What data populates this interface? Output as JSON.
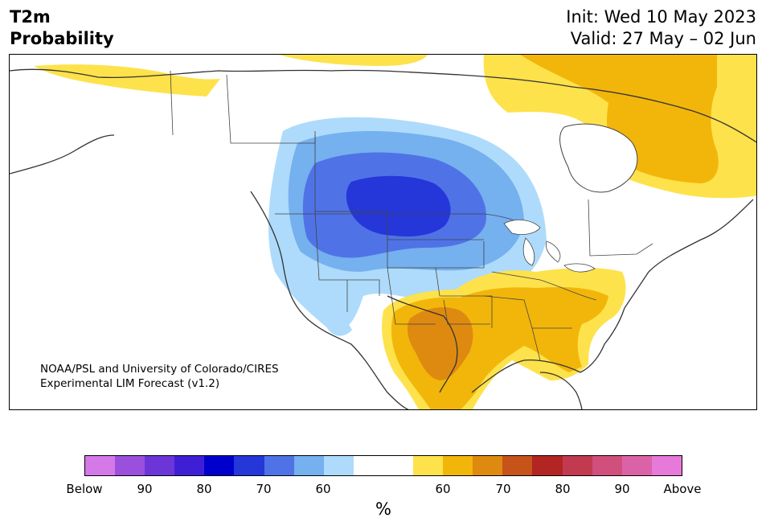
{
  "header": {
    "title_line1": "T2m",
    "title_line2": "Probability",
    "init": "Init: Wed 10 May 2023",
    "valid": "Valid: 27 May – 02 Jun"
  },
  "map": {
    "credit_line1": "NOAA/PSL and University of Colorado/CIRES",
    "credit_line2": "Experimental LIM Forecast (v1.2)",
    "below_colors": [
      "#aedbfb",
      "#75b0ef",
      "#4f73e6",
      "#2537d9"
    ],
    "above_colors": [
      "#fde24b",
      "#f2b60a",
      "#de8a10"
    ]
  },
  "colorbar": {
    "unit": "%",
    "colors": [
      "#d579e8",
      "#9a50dd",
      "#6c35d8",
      "#3f1fd6",
      "#0000cd",
      "#2537d9",
      "#4f73e6",
      "#75b0ef",
      "#aedbfb",
      "#ffffff",
      "#ffffff",
      "#fde24b",
      "#f2b60a",
      "#de8a10",
      "#c6531a",
      "#b22523",
      "#c23a50",
      "#d04f7c",
      "#dc62a8",
      "#e679da"
    ],
    "labels": [
      "Below",
      "90",
      "80",
      "70",
      "60",
      "60",
      "70",
      "80",
      "90",
      "Above"
    ]
  }
}
